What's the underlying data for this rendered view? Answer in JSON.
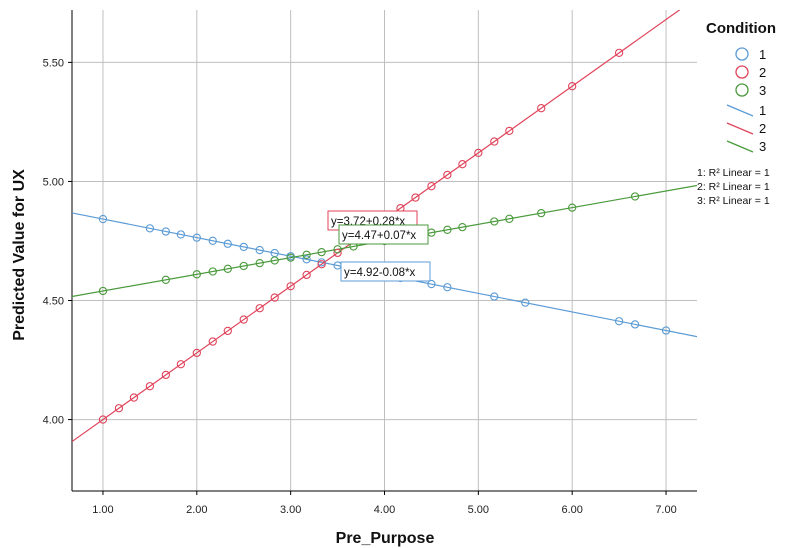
{
  "chart_data": {
    "type": "scatter",
    "xlabel": "Pre_Purpose",
    "ylabel": "Predicted Value for UX",
    "xlim": [
      0.67,
      7.33
    ],
    "ylim": [
      3.7,
      5.72
    ],
    "x_ticks": [
      "1.00",
      "2.00",
      "3.00",
      "4.00",
      "5.00",
      "6.00",
      "7.00"
    ],
    "y_ticks": [
      "4.00",
      "4.50",
      "5.00",
      "5.50"
    ],
    "x_tick_values": [
      1,
      2,
      3,
      4,
      5,
      6,
      7
    ],
    "y_tick_values": [
      4.0,
      4.5,
      5.0,
      5.5
    ],
    "grid": true,
    "legend": {
      "title": "Condition",
      "placement": "right",
      "marker_entries": [
        "1",
        "2",
        "3"
      ],
      "line_entries": [
        "1",
        "2",
        "3"
      ],
      "rsq_entries": [
        "R² Linear = 1",
        "R² Linear = 1",
        "R² Linear = 1"
      ],
      "rsq_prefix": [
        "1: ",
        "2: ",
        "3: "
      ]
    },
    "series": [
      {
        "name": "1",
        "color": "#5b9bd5",
        "intercept": 4.92,
        "slope": -0.078,
        "equation": "y=4.92-0.08*x",
        "x": [
          1.0,
          1.5,
          1.67,
          1.83,
          2.0,
          2.17,
          2.33,
          2.5,
          2.67,
          2.83,
          3.0,
          3.17,
          3.33,
          3.5,
          3.67,
          4.0,
          4.17,
          4.5,
          4.67,
          5.17,
          5.5,
          6.5,
          6.67,
          7.0
        ]
      },
      {
        "name": "2",
        "color": "#e0435a",
        "intercept": 3.72,
        "slope": 0.28,
        "equation": "y=3.72+0.28*x",
        "x": [
          1.0,
          1.17,
          1.33,
          1.5,
          1.67,
          1.83,
          2.0,
          2.17,
          2.33,
          2.5,
          2.67,
          2.83,
          3.0,
          3.17,
          3.33,
          3.5,
          3.83,
          4.0,
          4.17,
          4.33,
          4.5,
          4.67,
          4.83,
          5.0,
          5.17,
          5.33,
          5.67,
          6.0,
          6.5
        ]
      },
      {
        "name": "3",
        "color": "#4a9a3c",
        "intercept": 4.47,
        "slope": 0.07,
        "equation": "y=4.47+0.07*x",
        "x": [
          1.0,
          1.67,
          2.0,
          2.17,
          2.33,
          2.5,
          2.67,
          2.83,
          3.0,
          3.17,
          3.33,
          3.5,
          3.67,
          4.0,
          4.17,
          4.33,
          4.5,
          4.67,
          4.83,
          5.17,
          5.33,
          5.67,
          6.0,
          6.67
        ]
      }
    ]
  }
}
